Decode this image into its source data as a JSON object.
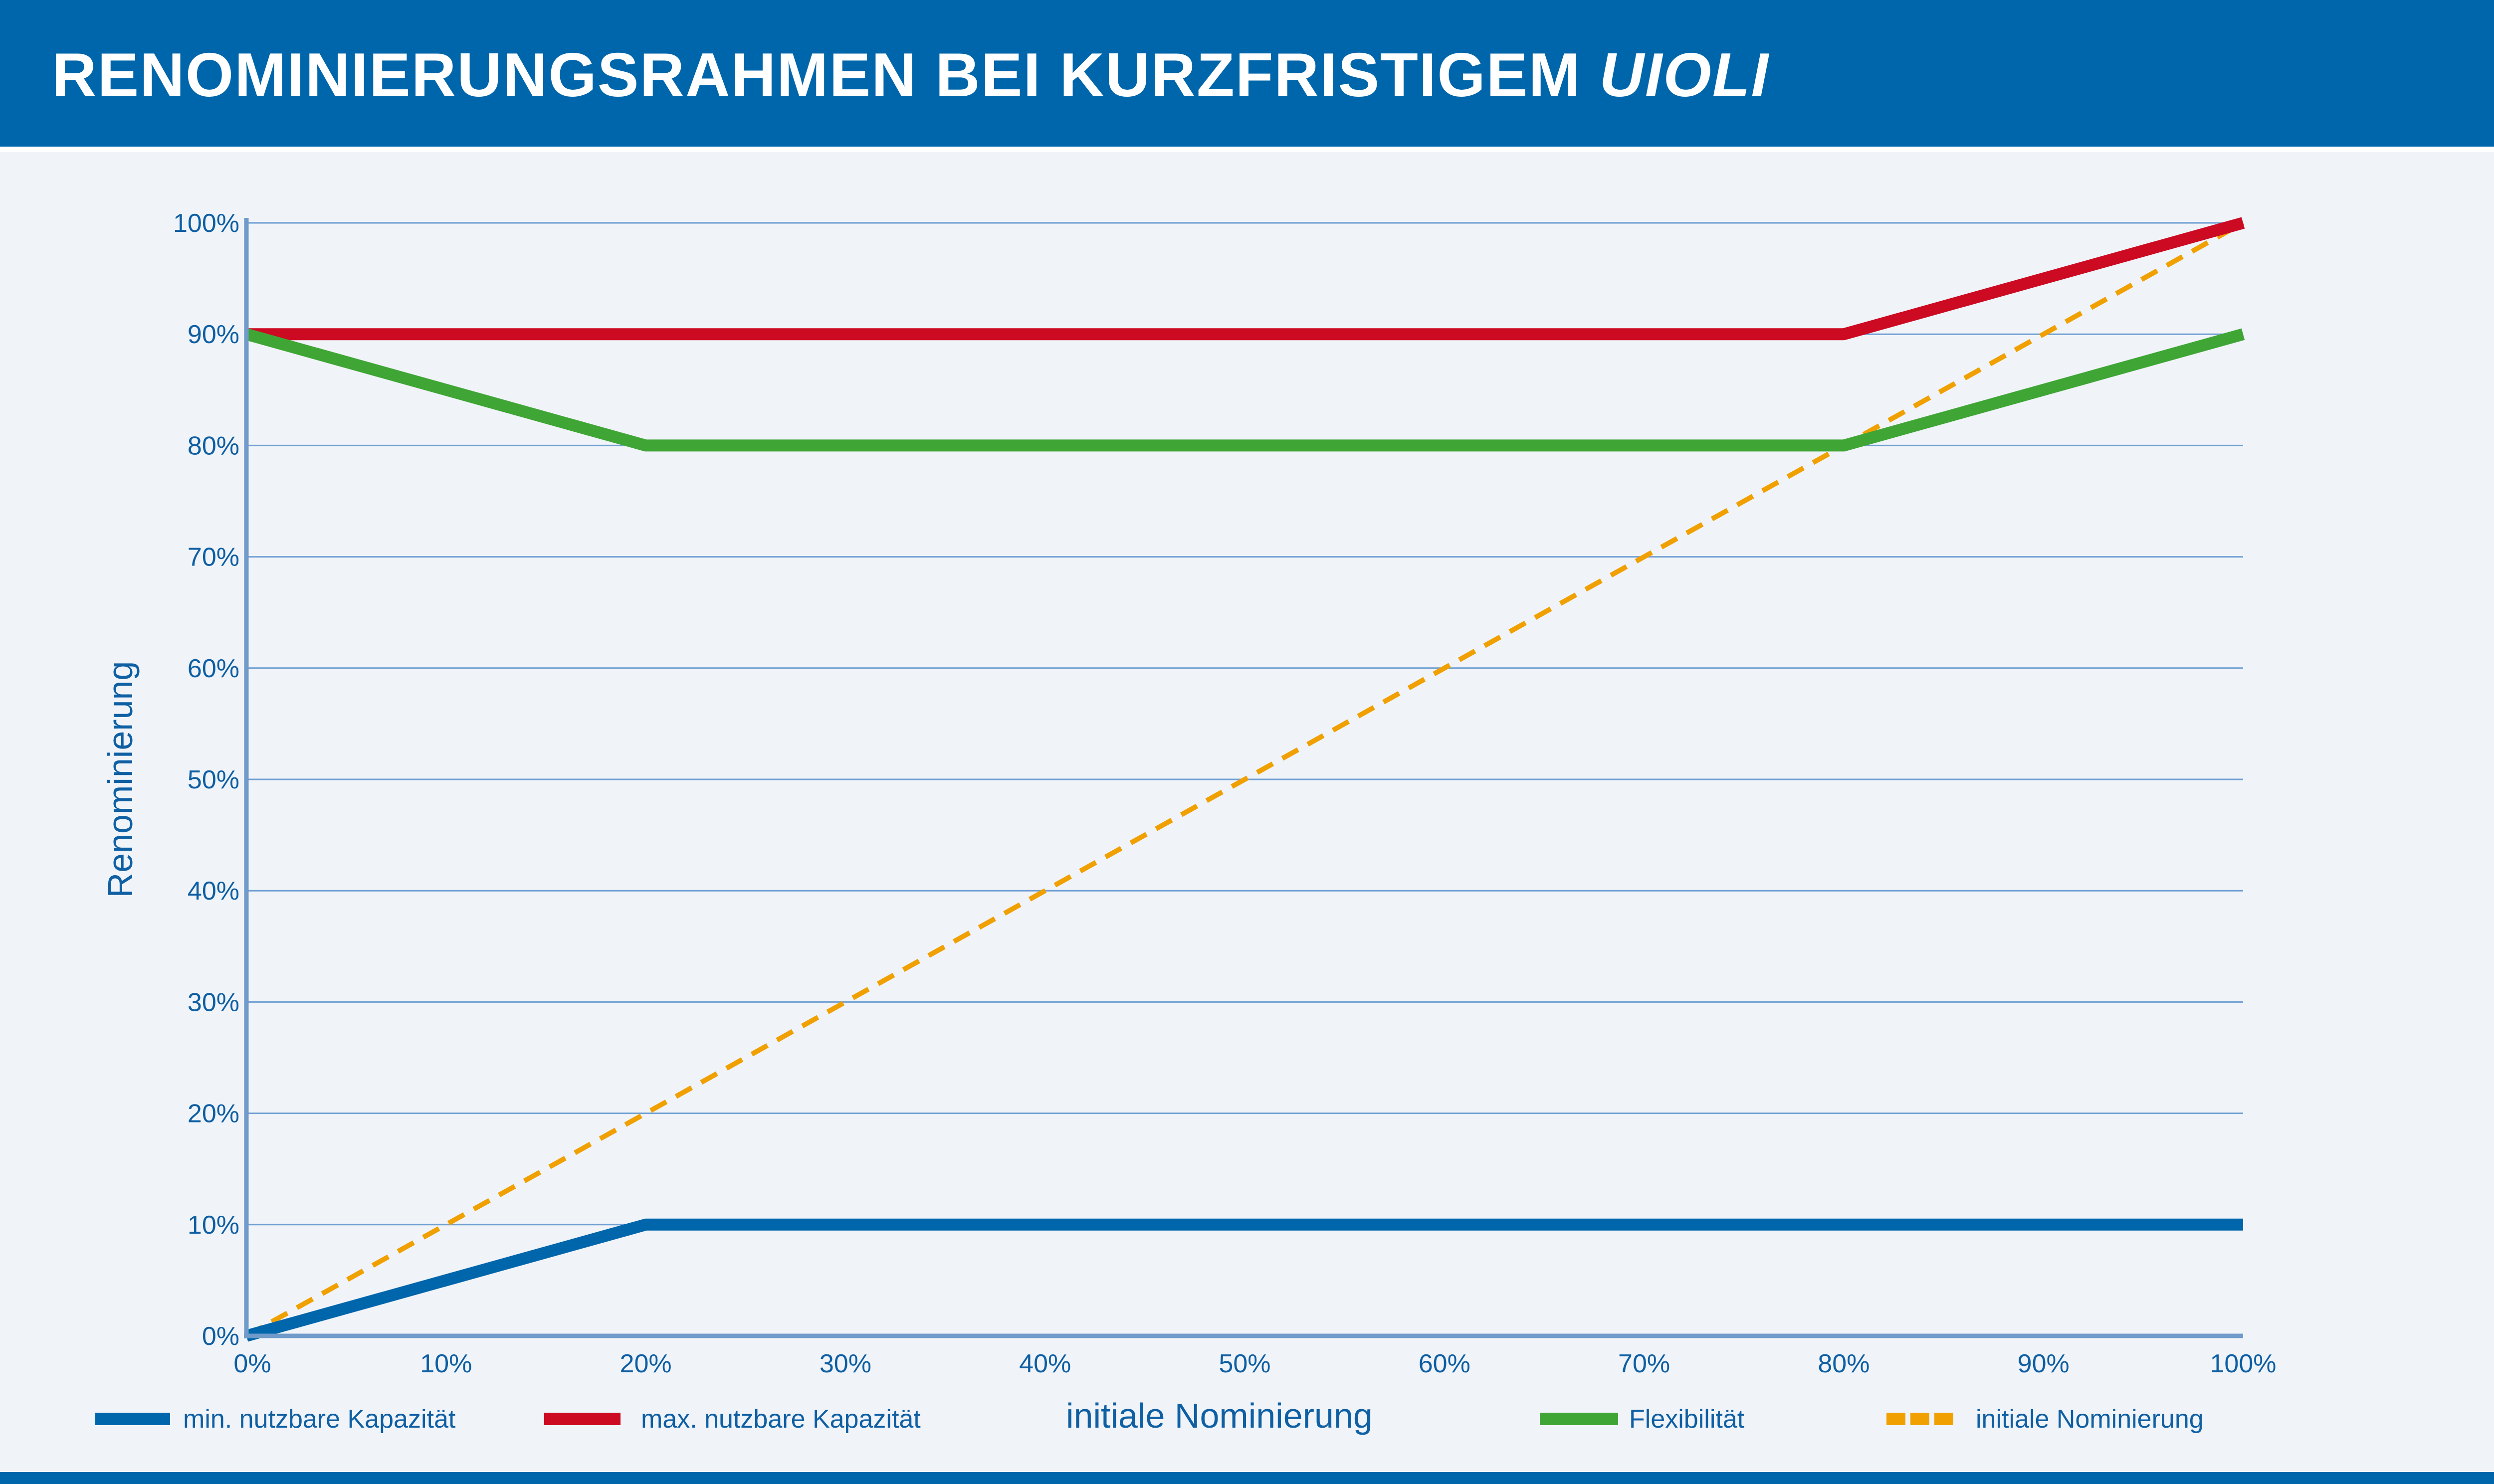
{
  "header": {
    "title_main": "RENOMINIERUNGSRAHMEN BEI KURZFRISTIGEM ",
    "title_italic": "UIOLI"
  },
  "chart_data": {
    "type": "line",
    "title": "RENOMINIERUNGSRAHMEN BEI KURZFRISTIGEM UIOLI",
    "xlabel": "initiale Nominierung",
    "ylabel": "Renominierung",
    "xlim": [
      0,
      100
    ],
    "ylim": [
      0,
      100
    ],
    "x_ticks": [
      "0%",
      "10%",
      "20%",
      "30%",
      "40%",
      "50%",
      "60%",
      "70%",
      "80%",
      "90%",
      "100%"
    ],
    "y_ticks": [
      "0%",
      "10%",
      "20%",
      "30%",
      "40%",
      "50%",
      "60%",
      "70%",
      "80%",
      "90%",
      "100%"
    ],
    "grid": "horizontal",
    "legend_position": "bottom",
    "series": [
      {
        "name": "min. nutzbare Kapazität",
        "color": "#0066ab",
        "dashed": false,
        "x": [
          0,
          20,
          100
        ],
        "y": [
          0,
          10,
          10
        ]
      },
      {
        "name": "max. nutzbare Kapazität",
        "color": "#cc0a22",
        "dashed": false,
        "x": [
          0,
          80,
          100
        ],
        "y": [
          90,
          90,
          100
        ]
      },
      {
        "name": "Flexibilität",
        "color": "#3fa535",
        "dashed": false,
        "x": [
          0,
          20,
          80,
          100
        ],
        "y": [
          90,
          80,
          80,
          90
        ]
      },
      {
        "name": "initiale Nominierung",
        "color": "#f0a000",
        "dashed": true,
        "x": [
          0,
          100
        ],
        "y": [
          0,
          100
        ]
      }
    ]
  }
}
